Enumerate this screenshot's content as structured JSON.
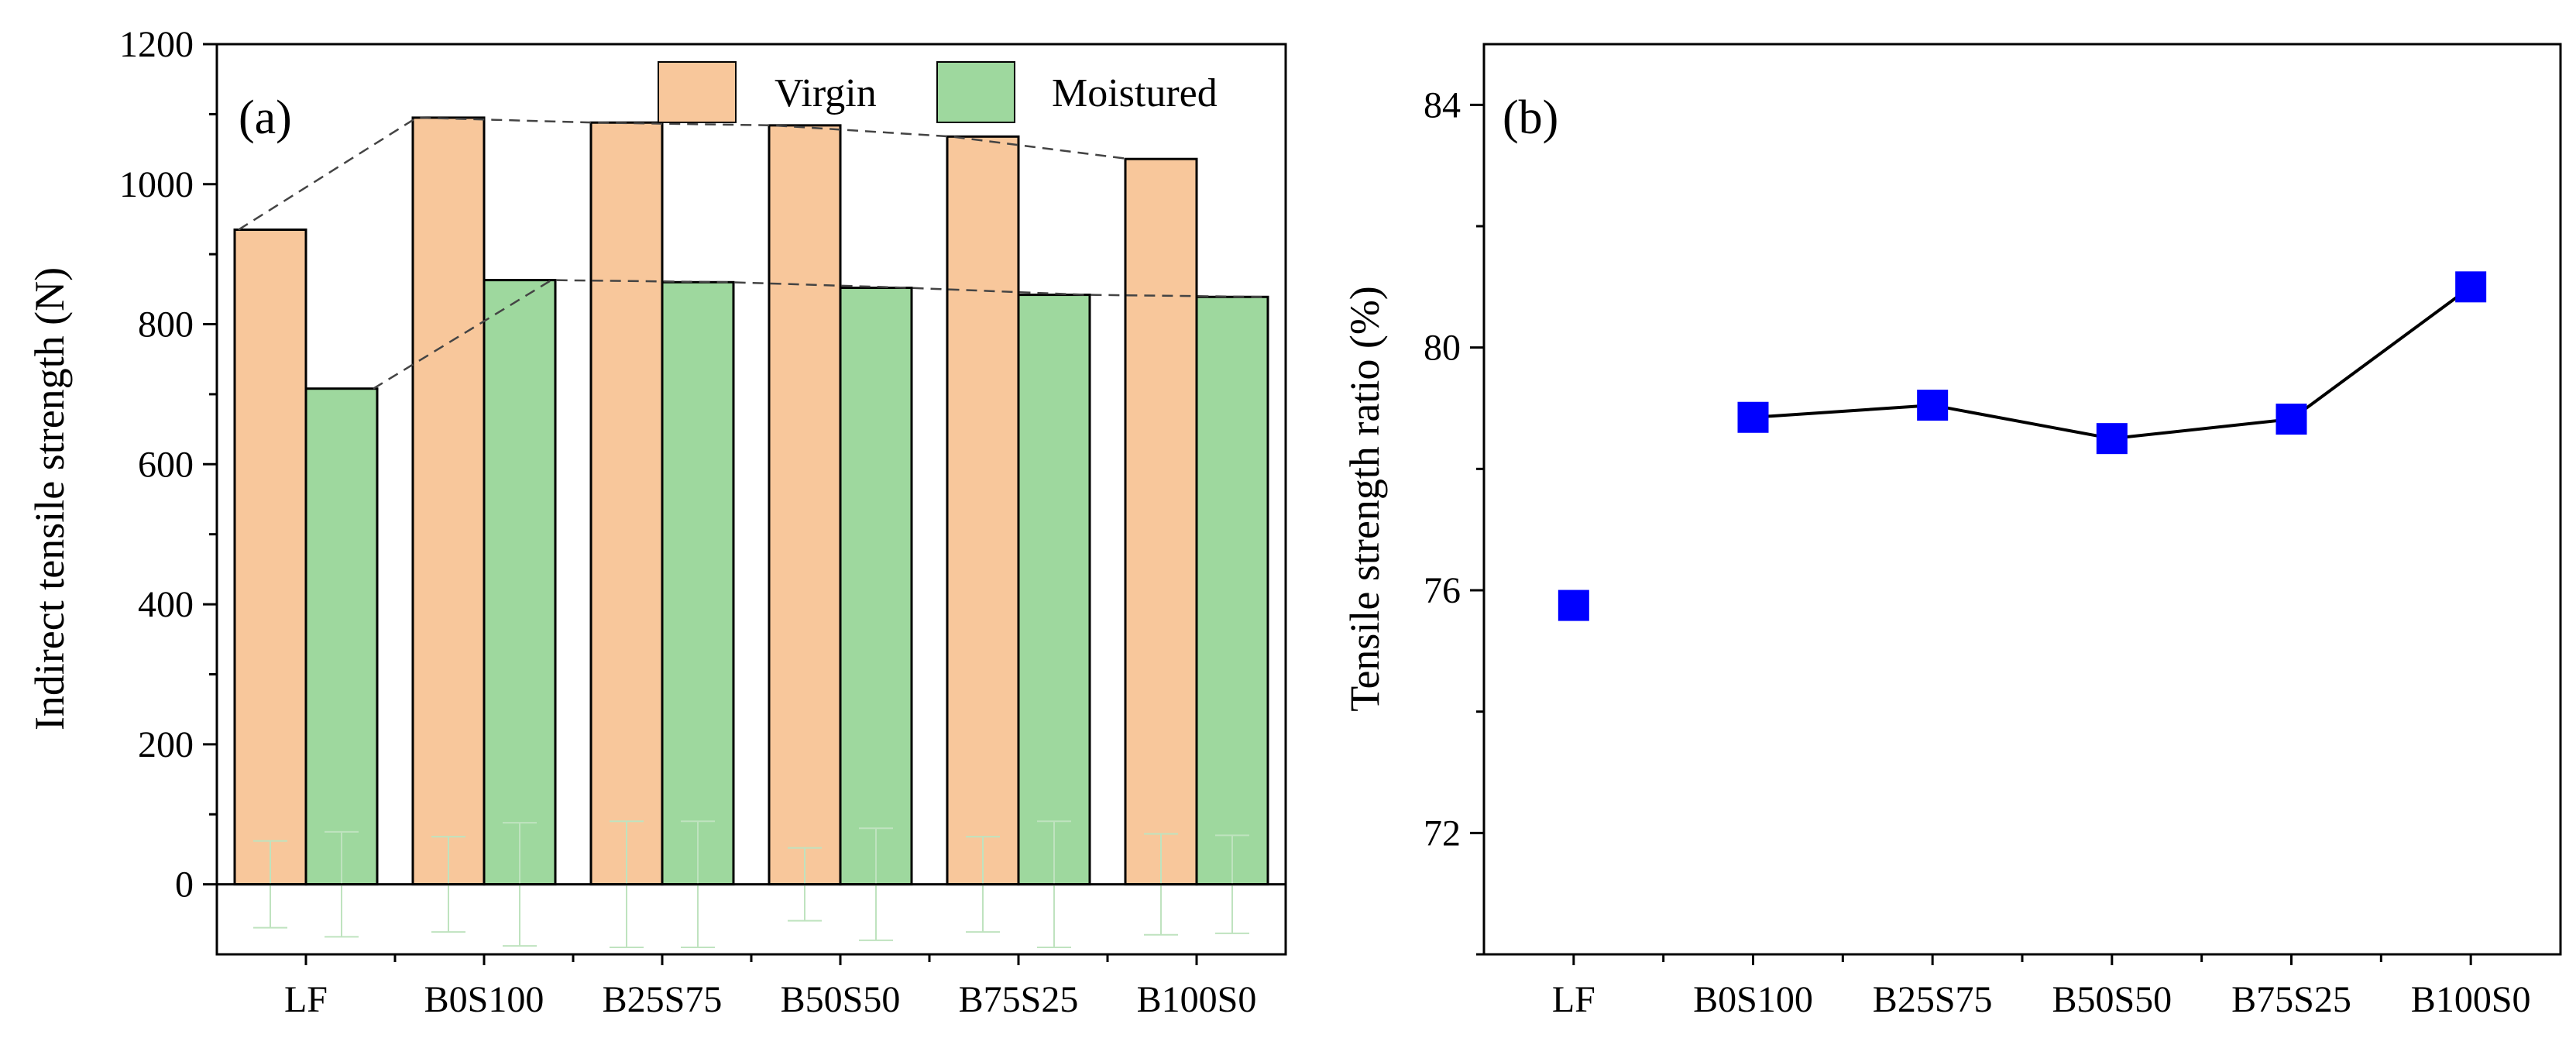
{
  "chart_data": [
    {
      "type": "bar",
      "panel_label": "(a)",
      "categories": [
        "LF",
        "B0S100",
        "B25S75",
        "B50S50",
        "B75S25",
        "B100S0"
      ],
      "series": [
        {
          "name": "Virgin",
          "values": [
            935,
            1095,
            1088,
            1084,
            1068,
            1036
          ],
          "color": "#F8C79B"
        },
        {
          "name": "Moistured",
          "values": [
            708,
            863,
            860,
            852,
            842,
            839
          ],
          "color": "#9ED89E"
        }
      ],
      "error_bars": {
        "Virgin": [
          62,
          68,
          90,
          52,
          68,
          72
        ],
        "Moistured": [
          75,
          88,
          90,
          80,
          90,
          70
        ],
        "color": "#bfe3bf"
      },
      "ylabel": "Indirect tensile strength (N)",
      "xlabel": "",
      "ylim": [
        -100,
        1200
      ],
      "yticks": [
        0,
        200,
        400,
        600,
        800,
        1000,
        1200
      ],
      "grid": false,
      "legend": "top-right",
      "trend_lines": "dashed lines connecting bar tops"
    },
    {
      "type": "scatter",
      "panel_label": "(b)",
      "categories": [
        "LF",
        "B0S100",
        "B25S75",
        "B50S50",
        "B75S25",
        "B100S0"
      ],
      "values": [
        75.75,
        78.85,
        79.05,
        78.5,
        78.82,
        81.0
      ],
      "connected_from_index": 1,
      "marker": "square",
      "color": "#0000FF",
      "ylabel": "Tensile strength ratio (%)",
      "xlabel": "",
      "ylim": [
        70,
        85
      ],
      "yticks": [
        72,
        76,
        80,
        84
      ],
      "grid": false
    }
  ]
}
